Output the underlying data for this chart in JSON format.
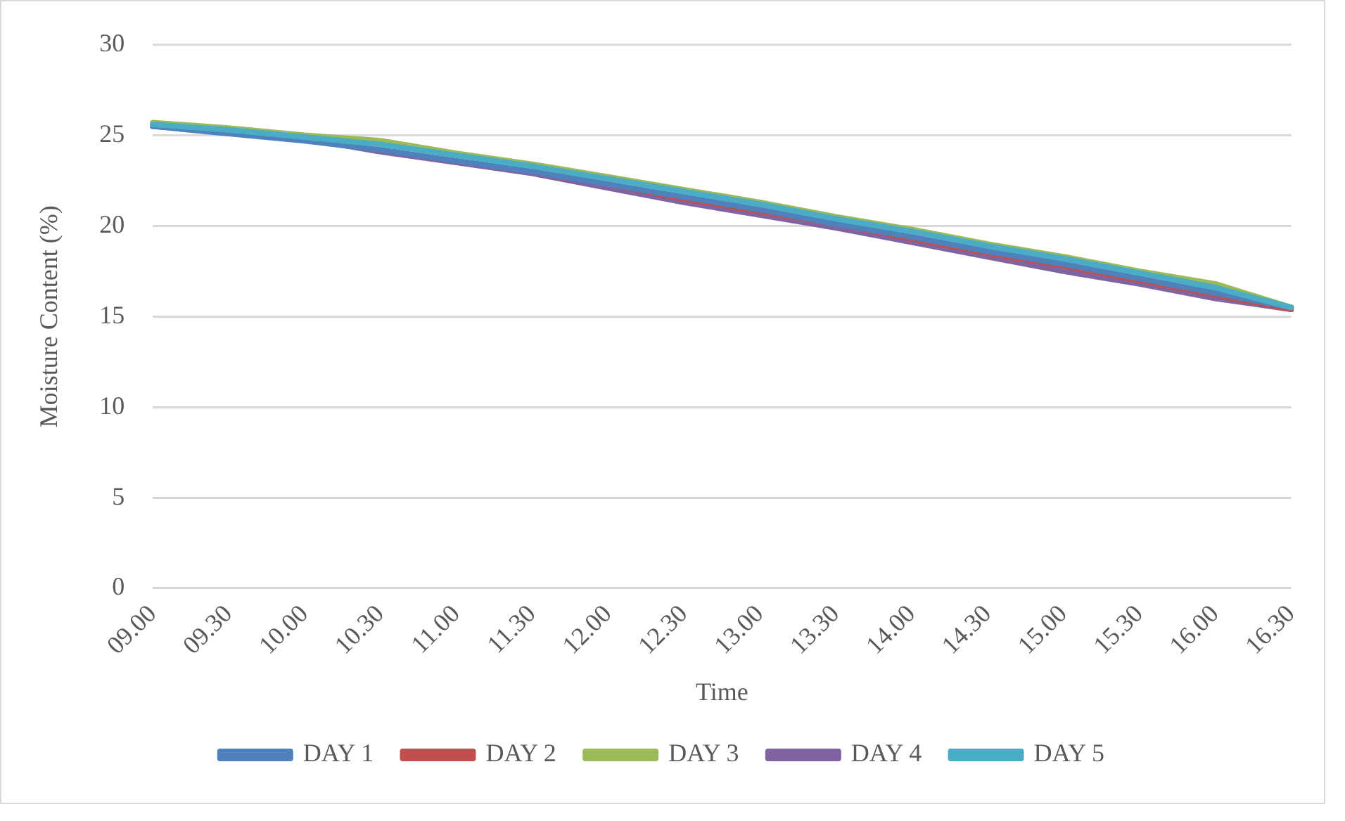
{
  "chart_data": {
    "type": "line",
    "xlabel": "Time",
    "ylabel": "Moisture Content (%)",
    "categories": [
      "09.00",
      "09.30",
      "10.00",
      "10.30",
      "11.00",
      "11.30",
      "12.00",
      "12.30",
      "13.00",
      "13.30",
      "14.00",
      "14.30",
      "15.00",
      "15.30",
      "16.00",
      "16.30"
    ],
    "series": [
      {
        "name": "DAY 1",
        "color": "#4f81bd",
        "values": [
          25.5,
          25.1,
          24.7,
          24.2,
          23.6,
          23.0,
          22.3,
          21.6,
          20.9,
          20.1,
          19.4,
          18.6,
          17.9,
          17.1,
          16.3,
          15.5
        ]
      },
      {
        "name": "DAY 2",
        "color": "#c0504d",
        "values": [
          null,
          null,
          null,
          null,
          null,
          23.0,
          22.3,
          21.5,
          20.8,
          20.1,
          19.3,
          18.5,
          17.8,
          17.0,
          16.2,
          15.4
        ]
      },
      {
        "name": "DAY 3",
        "color": "#9bbb59",
        "values": [
          25.7,
          25.4,
          25.0,
          24.7,
          24.0,
          23.4,
          22.7,
          22.0,
          21.3,
          20.5,
          19.8,
          19.0,
          18.3,
          17.5,
          16.8,
          15.5
        ]
      },
      {
        "name": "DAY 4",
        "color": "#8064a2",
        "values": [
          25.5,
          25.2,
          24.8,
          24.1,
          23.5,
          22.9,
          22.1,
          21.3,
          20.6,
          19.9,
          19.1,
          18.3,
          17.5,
          16.8,
          16.0,
          15.4
        ]
      },
      {
        "name": "DAY 5",
        "color": "#4bacc6",
        "values": [
          25.6,
          25.3,
          24.9,
          24.5,
          23.9,
          23.3,
          22.6,
          21.9,
          21.2,
          20.4,
          19.7,
          18.9,
          18.2,
          17.4,
          16.6,
          15.5
        ]
      }
    ],
    "ylim": [
      0,
      30
    ],
    "yticks": [
      0,
      5,
      10,
      15,
      20,
      25,
      30
    ],
    "grid": "y",
    "legend": "bottom",
    "marker": "none",
    "line_style": "solid"
  }
}
